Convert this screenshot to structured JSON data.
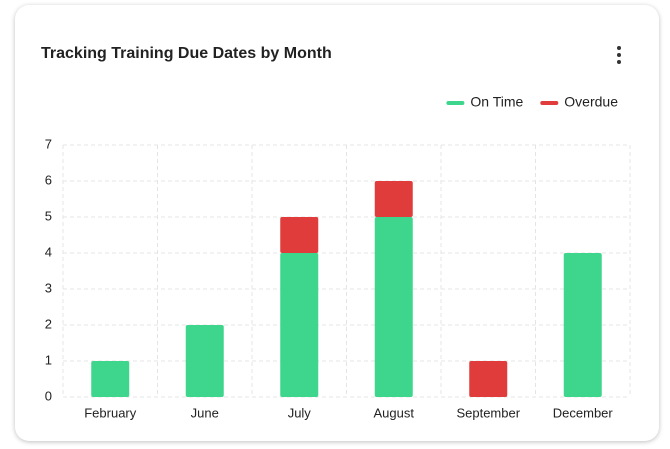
{
  "chart_data": {
    "type": "stacked_bar",
    "title": "Tracking Training Due Dates by Month",
    "categories": [
      "February",
      "June",
      "July",
      "August",
      "September",
      "December"
    ],
    "series": [
      {
        "name": "On Time",
        "color": "#3dd68c",
        "values": [
          1,
          2,
          4,
          5,
          0,
          4
        ]
      },
      {
        "name": "Overdue",
        "color": "#e03c3c",
        "values": [
          0,
          0,
          1,
          1,
          1,
          0
        ]
      }
    ],
    "ylim": [
      0,
      7
    ],
    "yticks": [
      0,
      1,
      2,
      3,
      4,
      5,
      6,
      7
    ],
    "grid": true,
    "legend": "top-right"
  }
}
